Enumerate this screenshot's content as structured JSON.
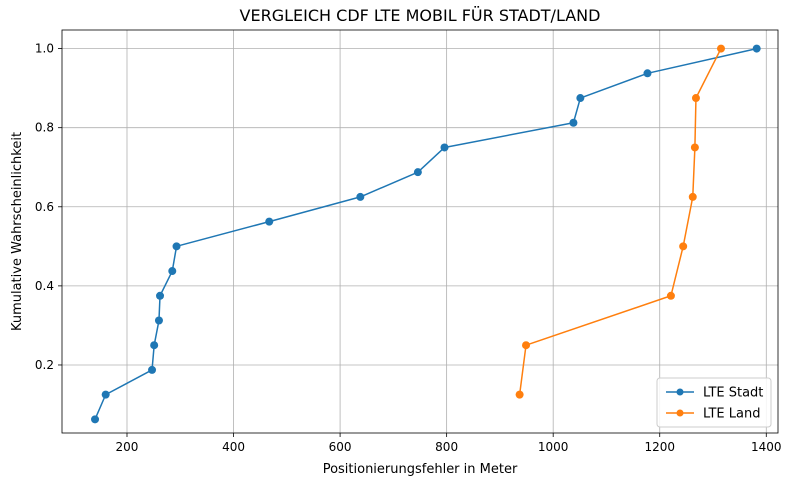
{
  "chart_data": {
    "type": "line",
    "title": "VERGLEICH CDF LTE MOBIL FÜR STADT/LAND",
    "xlabel": "Positionierungsfehler in Meter",
    "ylabel": "Kumulative Wahrscheinlichkeit",
    "xlim": [
      78,
      1422
    ],
    "ylim": [
      0.028,
      1.047
    ],
    "xticks": [
      200,
      400,
      600,
      800,
      1000,
      1200,
      1400
    ],
    "yticks": [
      0.2,
      0.4,
      0.6,
      0.8,
      1.0
    ],
    "xtick_labels": [
      "200",
      "400",
      "600",
      "800",
      "1000",
      "1200",
      "1400"
    ],
    "ytick_labels": [
      "0.2",
      "0.4",
      "0.6",
      "0.8",
      "1.0"
    ],
    "grid": true,
    "legend_position": "bottom-right",
    "series": [
      {
        "name": "LTE Stadt",
        "color": "#1f77b4",
        "marker": "circle",
        "x": [
          140,
          160,
          247,
          251,
          260,
          262,
          285,
          293,
          467,
          638,
          746,
          796,
          1038,
          1051,
          1177,
          1382
        ],
        "y": [
          0.0625,
          0.125,
          0.1875,
          0.25,
          0.3125,
          0.375,
          0.4375,
          0.5,
          0.5625,
          0.625,
          0.6875,
          0.75,
          0.8125,
          0.875,
          0.9375,
          1.0
        ]
      },
      {
        "name": "LTE Land",
        "color": "#ff7f0e",
        "marker": "circle",
        "x": [
          937,
          949,
          1221,
          1244,
          1262,
          1266,
          1268,
          1315
        ],
        "y": [
          0.125,
          0.25,
          0.375,
          0.5,
          0.625,
          0.75,
          0.875,
          1.0
        ]
      }
    ]
  }
}
